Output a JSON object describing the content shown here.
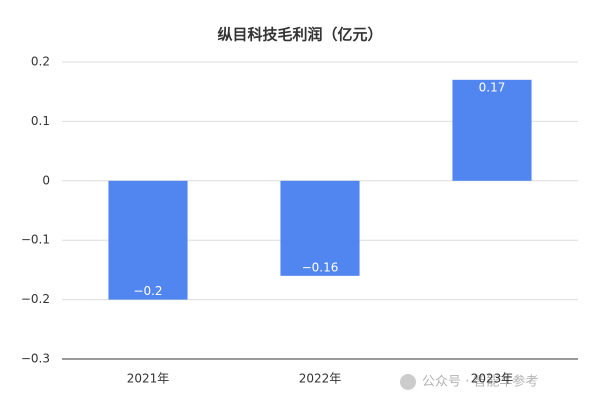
{
  "chart_data": {
    "type": "bar",
    "title": "纵目科技毛利润（亿元）",
    "categories": [
      "2021年",
      "2022年",
      "2023年"
    ],
    "values": [
      -0.2,
      -0.16,
      0.17
    ],
    "value_labels": [
      "−0.2",
      "−0.16",
      "0.17"
    ],
    "color": "#5185f0",
    "ylim": [
      -0.3,
      0.2
    ],
    "yticks": [
      0.2,
      0.1,
      0,
      {
        "value": -0.1,
        "label": "−0.1"
      },
      {
        "value": -0.2,
        "label": "−0.2"
      },
      {
        "value": -0.3,
        "label": "−0.3"
      }
    ],
    "grid": true
  },
  "watermark": "公众号 · 智能车参考"
}
